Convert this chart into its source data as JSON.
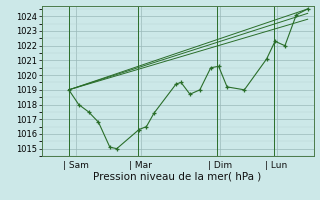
{
  "xlabel": "Pression niveau de la mer( hPa )",
  "bg_color": "#cce8e8",
  "grid_color_major": "#9ababa",
  "grid_color_minor": "#b8d4d4",
  "line_color": "#2a6e2a",
  "ylim": [
    1014.5,
    1024.7
  ],
  "yticks": [
    1015,
    1016,
    1017,
    1018,
    1019,
    1020,
    1021,
    1022,
    1023,
    1024
  ],
  "xlim_days": [
    0,
    5.5
  ],
  "xtick_labels": [
    "Sam",
    "Mar",
    "Dim",
    "Lun"
  ],
  "xtick_positions": [
    0.7,
    2.0,
    3.6,
    4.75
  ],
  "vline_positions": [
    0.55,
    1.95,
    3.55,
    4.7
  ],
  "line1_x": [
    0.55,
    0.75,
    0.95,
    1.15,
    1.38,
    1.52,
    1.97,
    2.12,
    2.27,
    2.72,
    2.82,
    3.0,
    3.2,
    3.42,
    3.58,
    3.75,
    4.1,
    4.55,
    4.72,
    4.92,
    5.15,
    5.38
  ],
  "line1_y": [
    1019.0,
    1018.0,
    1017.5,
    1016.8,
    1015.1,
    1015.0,
    1016.3,
    1016.5,
    1017.4,
    1019.4,
    1019.5,
    1018.7,
    1019.0,
    1020.5,
    1020.6,
    1019.2,
    1019.0,
    1021.1,
    1022.3,
    1022.0,
    1024.1,
    1024.5
  ],
  "line2_x": [
    0.55,
    5.38
  ],
  "line2_y": [
    1019.0,
    1024.5
  ],
  "line3_x": [
    0.55,
    5.38
  ],
  "line3_y": [
    1019.0,
    1024.2
  ],
  "line4_x": [
    0.55,
    5.38
  ],
  "line4_y": [
    1019.0,
    1023.8
  ]
}
